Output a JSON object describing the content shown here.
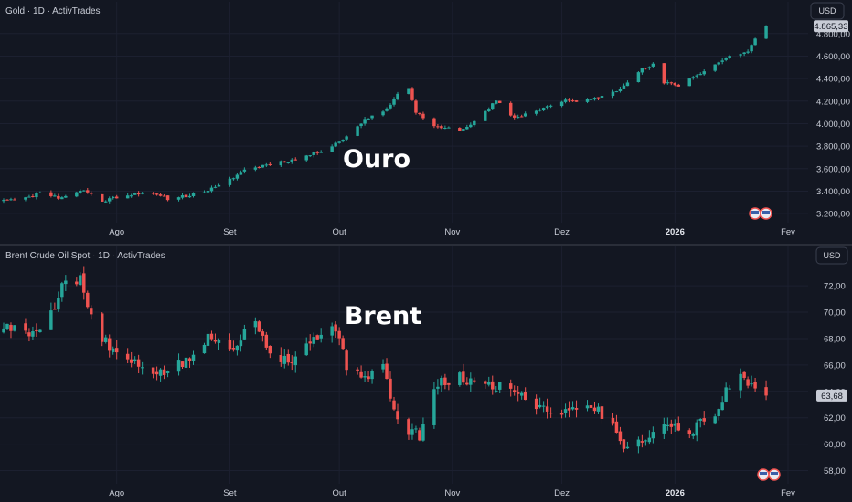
{
  "colors": {
    "up": "#26a69a",
    "down": "#ef5350",
    "background": "#131722"
  },
  "chart_data": [
    {
      "type": "candlestick",
      "title": "Gold · 1D · ActivTrades",
      "overlay_label": "Ouro",
      "currency": "USD",
      "last_price": 4865.33,
      "last_price_label": "4.865,33",
      "ylim": [
        3120,
        4920
      ],
      "y_ticks": [
        3200,
        3400,
        3600,
        3800,
        4000,
        4200,
        4400,
        4600,
        4800
      ],
      "y_tick_labels": [
        "3.200,00",
        "3.400,00",
        "3.600,00",
        "3.800,00",
        "4.000,00",
        "4.200,00",
        "4.400,00",
        "4.600,00",
        "4.800,00"
      ],
      "x_ticks": [
        {
          "label": "Ago",
          "at": "2025-08-01",
          "bold": false
        },
        {
          "label": "Set",
          "at": "2025-09-01",
          "bold": false
        },
        {
          "label": "Out",
          "at": "2025-10-01",
          "bold": false
        },
        {
          "label": "Nov",
          "at": "2025-11-01",
          "bold": false
        },
        {
          "label": "Dez",
          "at": "2025-12-01",
          "bold": false
        },
        {
          "label": "2026",
          "at": "2026-01-01",
          "bold": true
        },
        {
          "label": "Fev",
          "at": "2026-02-01",
          "bold": false
        }
      ],
      "x_range": [
        "2025-06-30",
        "2026-02-02"
      ],
      "anchor_points": [
        [
          "2025-07-01",
          3330
        ],
        [
          "2025-07-08",
          3340
        ],
        [
          "2025-07-11",
          3400
        ],
        [
          "2025-07-16",
          3340
        ],
        [
          "2025-07-23",
          3410
        ],
        [
          "2025-07-28",
          3310
        ],
        [
          "2025-08-01",
          3350
        ],
        [
          "2025-08-08",
          3390
        ],
        [
          "2025-08-15",
          3335
        ],
        [
          "2025-08-22",
          3370
        ],
        [
          "2025-08-29",
          3440
        ],
        [
          "2025-09-05",
          3590
        ],
        [
          "2025-09-12",
          3645
        ],
        [
          "2025-09-19",
          3680
        ],
        [
          "2025-09-26",
          3760
        ],
        [
          "2025-10-03",
          3880
        ],
        [
          "2025-10-08",
          4040
        ],
        [
          "2025-10-13",
          4110
        ],
        [
          "2025-10-17",
          4250
        ],
        [
          "2025-10-20",
          4330
        ],
        [
          "2025-10-22",
          4100
        ],
        [
          "2025-10-28",
          3960
        ],
        [
          "2025-11-04",
          3950
        ],
        [
          "2025-11-10",
          4100
        ],
        [
          "2025-11-13",
          4200
        ],
        [
          "2025-11-18",
          4050
        ],
        [
          "2025-11-25",
          4130
        ],
        [
          "2025-12-02",
          4200
        ],
        [
          "2025-12-09",
          4210
        ],
        [
          "2025-12-16",
          4300
        ],
        [
          "2025-12-23",
          4480
        ],
        [
          "2025-12-26",
          4520
        ],
        [
          "2025-12-29",
          4360
        ],
        [
          "2026-01-02",
          4340
        ],
        [
          "2026-01-09",
          4470
        ],
        [
          "2026-01-16",
          4600
        ],
        [
          "2026-01-21",
          4640
        ],
        [
          "2026-01-23",
          4750
        ],
        [
          "2026-01-26",
          4865
        ]
      ],
      "volatility": 25,
      "seed": 11
    },
    {
      "type": "candlestick",
      "title": "Brent Crude Oil Spot · 1D · ActivTrades",
      "overlay_label": "Brent",
      "currency": "USD",
      "last_price": 63.68,
      "last_price_label": "63,68",
      "ylim": [
        57.0,
        73.6
      ],
      "y_ticks": [
        58,
        60,
        62,
        64,
        66,
        68,
        70,
        72
      ],
      "y_tick_labels": [
        "58,00",
        "60,00",
        "62,00",
        "64,00",
        "66,00",
        "68,00",
        "70,00",
        "72,00"
      ],
      "x_ticks": [
        {
          "label": "Ago",
          "at": "2025-08-01",
          "bold": false
        },
        {
          "label": "Set",
          "at": "2025-09-01",
          "bold": false
        },
        {
          "label": "Out",
          "at": "2025-10-01",
          "bold": false
        },
        {
          "label": "Nov",
          "at": "2025-11-01",
          "bold": false
        },
        {
          "label": "Dez",
          "at": "2025-12-01",
          "bold": false
        },
        {
          "label": "2026",
          "at": "2026-01-01",
          "bold": true
        },
        {
          "label": "Fev",
          "at": "2026-02-01",
          "bold": false
        }
      ],
      "x_range": [
        "2025-06-30",
        "2026-02-02"
      ],
      "anchor_points": [
        [
          "2025-07-01",
          69.0
        ],
        [
          "2025-07-08",
          68.3
        ],
        [
          "2025-07-14",
          69.8
        ],
        [
          "2025-07-17",
          72.2
        ],
        [
          "2025-07-22",
          72.5
        ],
        [
          "2025-07-25",
          69.5
        ],
        [
          "2025-07-30",
          67.2
        ],
        [
          "2025-08-06",
          66.0
        ],
        [
          "2025-08-13",
          65.4
        ],
        [
          "2025-08-20",
          66.2
        ],
        [
          "2025-08-26",
          68.0
        ],
        [
          "2025-09-02",
          67.5
        ],
        [
          "2025-09-08",
          69.5
        ],
        [
          "2025-09-12",
          67.0
        ],
        [
          "2025-09-18",
          66.3
        ],
        [
          "2025-09-24",
          68.0
        ],
        [
          "2025-09-29",
          69.3
        ],
        [
          "2025-10-03",
          66.0
        ],
        [
          "2025-10-08",
          65.2
        ],
        [
          "2025-10-13",
          65.8
        ],
        [
          "2025-10-17",
          61.5
        ],
        [
          "2025-10-23",
          60.7
        ],
        [
          "2025-10-28",
          64.5
        ],
        [
          "2025-11-03",
          65.0
        ],
        [
          "2025-11-10",
          64.5
        ],
        [
          "2025-11-17",
          64.3
        ],
        [
          "2025-11-24",
          63.0
        ],
        [
          "2025-12-01",
          62.4
        ],
        [
          "2025-12-08",
          63.2
        ],
        [
          "2025-12-15",
          61.5
        ],
        [
          "2025-12-19",
          59.4
        ],
        [
          "2025-12-23",
          60.5
        ],
        [
          "2025-12-30",
          61.5
        ],
        [
          "2026-01-05",
          61.0
        ],
        [
          "2026-01-12",
          62.2
        ],
        [
          "2026-01-16",
          64.5
        ],
        [
          "2026-01-20",
          65.4
        ],
        [
          "2026-01-23",
          63.8
        ],
        [
          "2026-01-26",
          63.6
        ]
      ],
      "volatility": 0.75,
      "seed": 5
    }
  ]
}
